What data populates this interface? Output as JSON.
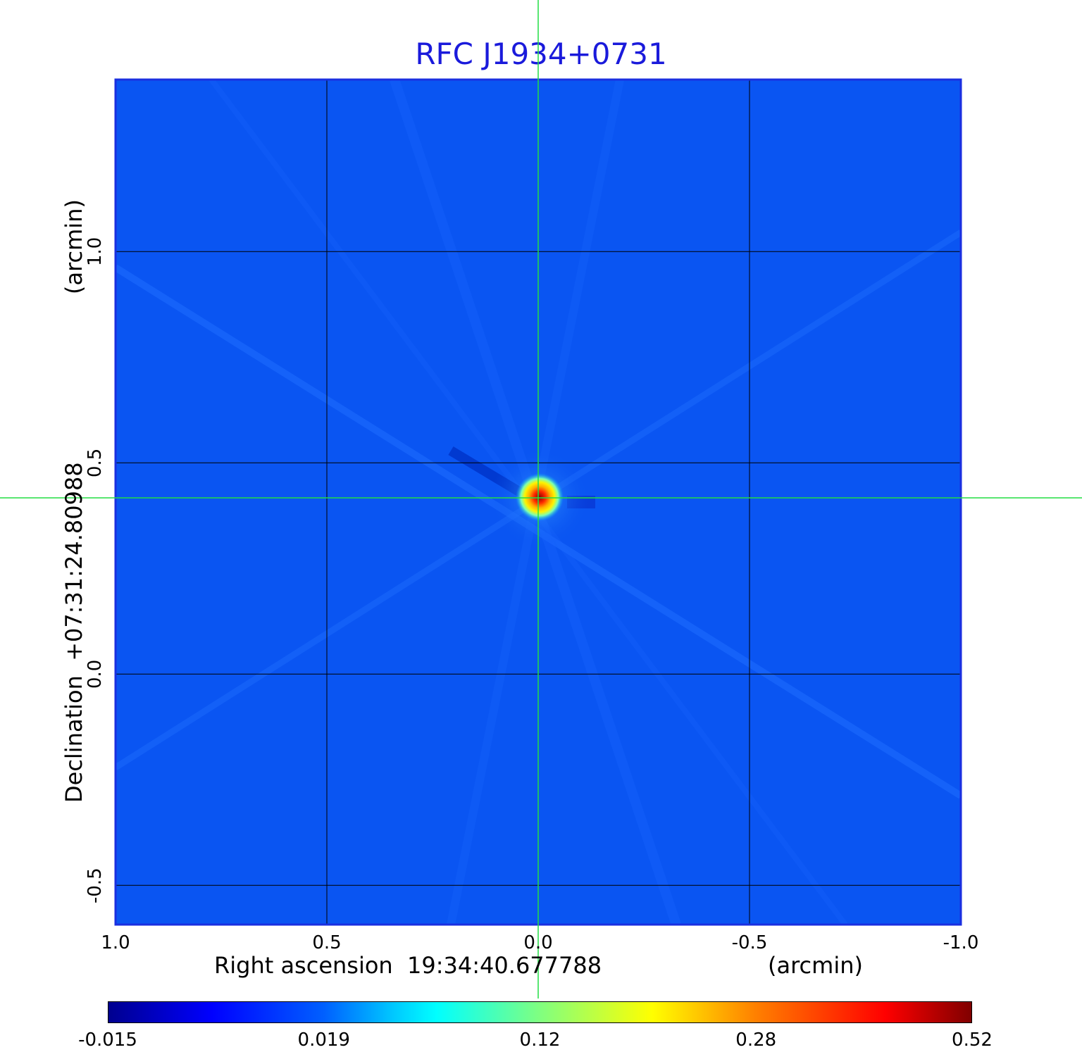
{
  "chart_data": {
    "type": "heatmap",
    "title": "RFC J1934+0731",
    "xlabel": "Right ascension  19:34:40.677788",
    "xunit": "(arcmin)",
    "ylabel": "Declination  +07:31:24.80988",
    "yunit": "(arcmin)",
    "xlim": [
      1.0,
      -1.0
    ],
    "ylim": [
      -0.593,
      1.407
    ],
    "xticks": [
      "1.0",
      "0.5",
      "0.0",
      "-0.5",
      "-1.0"
    ],
    "xtick_values": [
      1.0,
      0.5,
      0.0,
      -0.5,
      -1.0
    ],
    "yticks": [
      "-0.5",
      "0.0",
      "0.5",
      "1.0"
    ],
    "ytick_values": [
      -0.5,
      0.0,
      0.5,
      1.0
    ],
    "grid": true,
    "crosshair": {
      "x": 0.0,
      "y": 0.417
    },
    "peak": {
      "x": 0.0,
      "y": 0.417,
      "value": 0.52
    },
    "colorbar": {
      "ticks": [
        "-0.015",
        "0.019",
        "0.12",
        "0.28",
        "0.52"
      ],
      "colormap": "jet"
    },
    "colors": {
      "background": "#0a55f2",
      "title": "#1a1adb",
      "crosshair": "#22dd44",
      "grid": "#000000"
    }
  }
}
